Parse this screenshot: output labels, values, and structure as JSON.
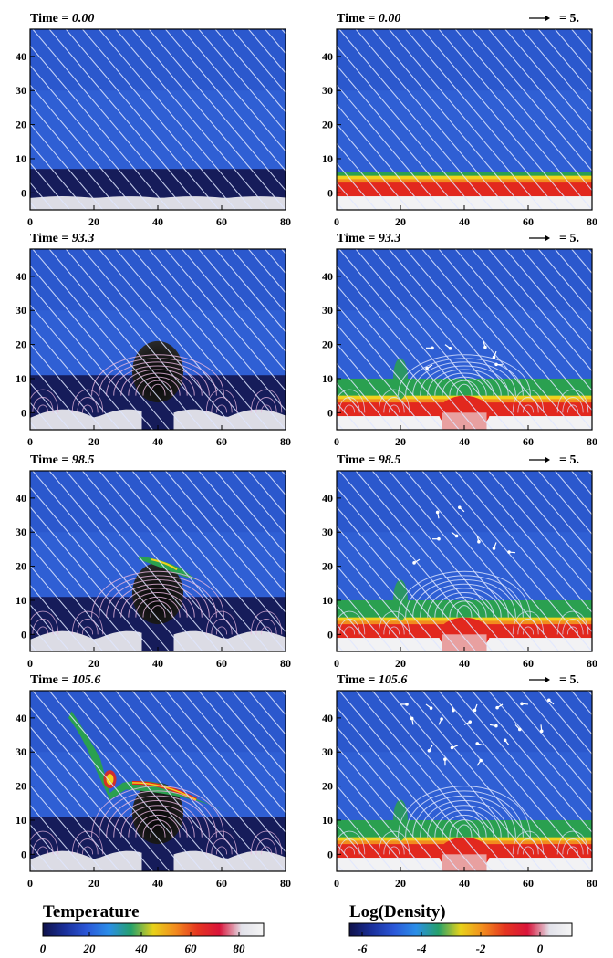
{
  "panels": [
    {
      "field": "temperature",
      "time_label": "Time = ",
      "time_value": "0.00",
      "show_vector": false,
      "stage": 0
    },
    {
      "field": "density",
      "time_label": "Time = ",
      "time_value": "0.00",
      "show_vector": true,
      "stage": 0
    },
    {
      "field": "temperature",
      "time_label": "Time = ",
      "time_value": "93.3",
      "show_vector": false,
      "stage": 1
    },
    {
      "field": "density",
      "time_label": "Time = ",
      "time_value": "93.3",
      "show_vector": true,
      "stage": 1
    },
    {
      "field": "temperature",
      "time_label": "Time = ",
      "time_value": "98.5",
      "show_vector": false,
      "stage": 2
    },
    {
      "field": "density",
      "time_label": "Time = ",
      "time_value": "98.5",
      "show_vector": true,
      "stage": 2
    },
    {
      "field": "temperature",
      "time_label": "Time = ",
      "time_value": "105.6",
      "show_vector": false,
      "stage": 3
    },
    {
      "field": "density",
      "time_label": "Time = ",
      "time_value": "105.6",
      "show_vector": true,
      "stage": 3
    }
  ],
  "vector_label": "= 5.",
  "x_axis": {
    "range": [
      0,
      80
    ],
    "ticks": [
      "0",
      "20",
      "40",
      "60",
      "80"
    ]
  },
  "y_axis": {
    "range": [
      -5,
      48
    ],
    "ticks": [
      "0",
      "10",
      "20",
      "30",
      "40"
    ]
  },
  "colorbars": [
    {
      "title": "Temperature",
      "ticks": [
        "0",
        "20",
        "40",
        "60",
        "80"
      ],
      "colors": [
        "#10124a",
        "#1a2f9a",
        "#2b57d8",
        "#2b8ee8",
        "#25a06a",
        "#e8d21a",
        "#f28c1e",
        "#e53520",
        "#d9143a",
        "#e2e2ea",
        "#f5f5f5"
      ]
    },
    {
      "title": "Log(Density)",
      "ticks": [
        "-6",
        "-4",
        "-2",
        "0"
      ],
      "colors": [
        "#10124a",
        "#1a2f9a",
        "#2b57d8",
        "#2b8ee8",
        "#25a06a",
        "#e8d21a",
        "#f28c1e",
        "#e53520",
        "#d9143a",
        "#e2e2ea",
        "#f5f5f5"
      ]
    }
  ],
  "colors": {
    "background_blue": "#2f5fd4",
    "upper_blue": "#2a54c8",
    "dark_layer": "#161c5a",
    "field_line": "#dfe6ff",
    "field_line_pink": "#e8b8e0",
    "flux_core": "#0e0e0e",
    "green": "#2aa050",
    "yellow": "#f0d21e",
    "orange": "#f28c1e",
    "red": "#e2281e",
    "pink": "#e8a0a0",
    "white": "#f2f2f4"
  }
}
